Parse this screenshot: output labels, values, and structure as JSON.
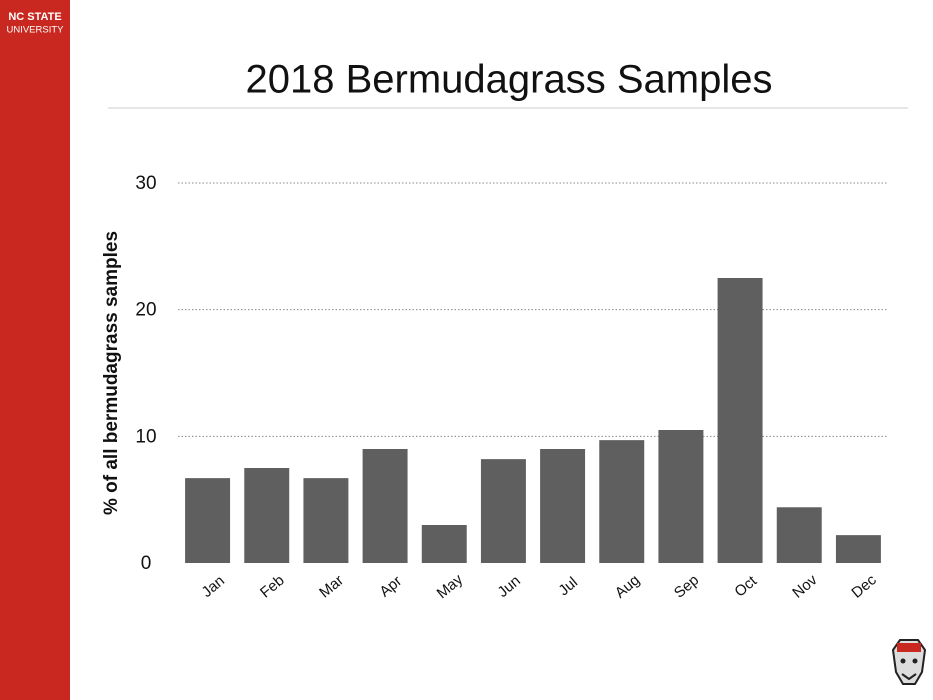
{
  "branding": {
    "name": "NC STATE",
    "subname": "UNIVERSITY"
  },
  "chart_data": {
    "type": "bar",
    "title": "2018 Bermudagrass Samples",
    "y_label": "% of all bermudagrass samples",
    "categories": [
      "Jan",
      "Feb",
      "Mar",
      "Apr",
      "May",
      "Jun",
      "Jul",
      "Aug",
      "Sep",
      "Oct",
      "Nov",
      "Dec"
    ],
    "values": [
      6.7,
      7.5,
      6.7,
      9.0,
      3.0,
      8.2,
      9.0,
      9.7,
      10.5,
      22.5,
      4.4,
      2.2
    ],
    "color": "#5f5f5f",
    "ylim": [
      0,
      30
    ],
    "yticks": [
      0,
      10,
      20,
      30
    ],
    "grid": true
  }
}
